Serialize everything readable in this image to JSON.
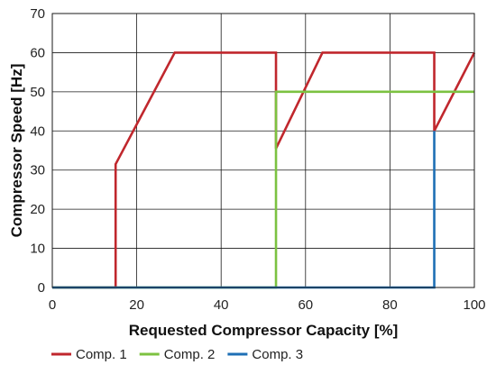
{
  "chart_data": {
    "type": "line",
    "title": "",
    "xlabel": "Requested Compressor Capacity [%]",
    "ylabel": "Compressor Speed [Hz]",
    "xlim": [
      0,
      100
    ],
    "ylim": [
      0,
      70
    ],
    "xticks": [
      0,
      20,
      40,
      60,
      80,
      100
    ],
    "yticks": [
      0,
      10,
      20,
      30,
      40,
      50,
      60,
      70
    ],
    "grid": true,
    "legend_position": "bottom",
    "series": [
      {
        "name": "Comp. 1",
        "color": "#c0272d",
        "points": [
          [
            0,
            0
          ],
          [
            15,
            0
          ],
          [
            15,
            31.5
          ],
          [
            29,
            60
          ],
          [
            53,
            60
          ],
          [
            53,
            35.5
          ],
          [
            64,
            60
          ],
          [
            90.5,
            60
          ],
          [
            90.5,
            40
          ],
          [
            100,
            60
          ]
        ]
      },
      {
        "name": "Comp. 2",
        "color": "#7cc241",
        "points": [
          [
            0,
            0
          ],
          [
            53,
            0
          ],
          [
            53,
            50
          ],
          [
            100,
            50
          ]
        ]
      },
      {
        "name": "Comp. 3",
        "color": "#1e6fb5",
        "points": [
          [
            0,
            0
          ],
          [
            90.5,
            0
          ],
          [
            90.5,
            40
          ]
        ]
      }
    ]
  }
}
